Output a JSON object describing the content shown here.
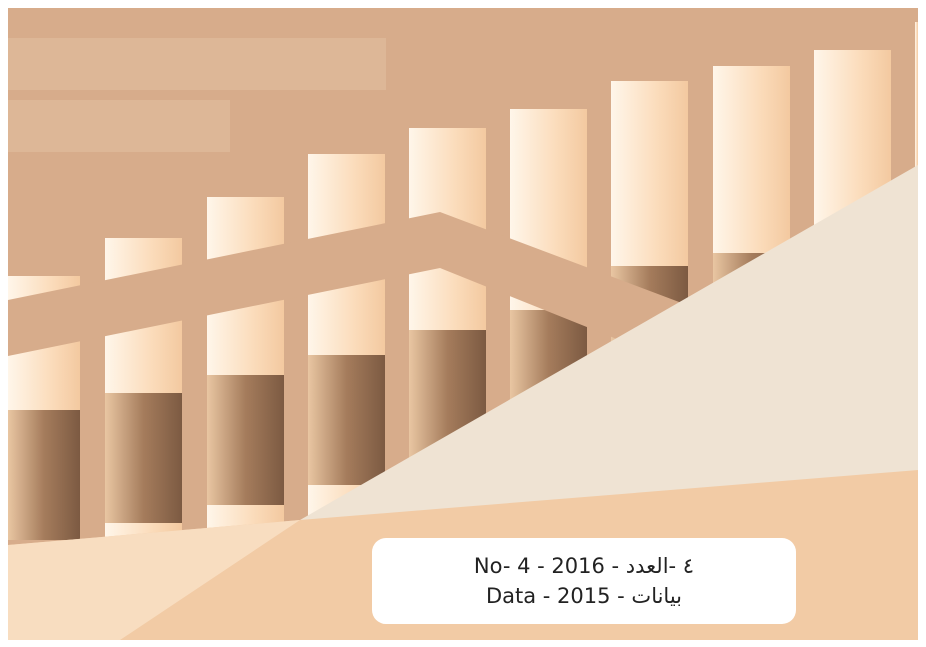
{
  "cover": {
    "issue_line": "No- 4 - 2016 - ٤ -العدد",
    "data_line": "Data - 2015 - بيانات"
  }
}
